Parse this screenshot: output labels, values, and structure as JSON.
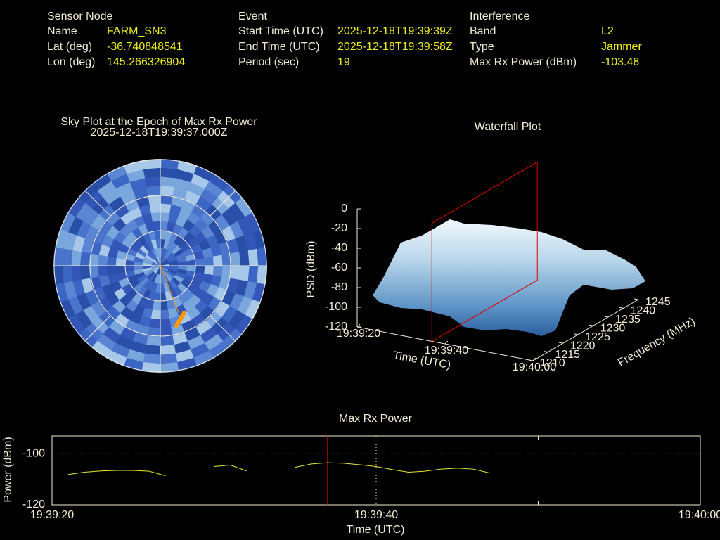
{
  "info": {
    "sensor_node": {
      "title": "Sensor Node",
      "rows": [
        {
          "label": "Name",
          "value": "FARM_SN3"
        },
        {
          "label": "Lat (deg)",
          "value": -36.740848541
        },
        {
          "label": "Lon (deg)",
          "value": 145.266326904
        }
      ]
    },
    "event": {
      "title": "Event",
      "rows": [
        {
          "label": "Start Time (UTC)",
          "value": "2025-12-18T19:39:39Z"
        },
        {
          "label": "End Time (UTC)",
          "value": "2025-12-18T19:39:58Z"
        },
        {
          "label": "Period (sec)",
          "value": 19
        }
      ]
    },
    "interference": {
      "title": "Interference",
      "rows": [
        {
          "label": "Band",
          "value": "L2"
        },
        {
          "label": "Type",
          "value": "Jammer"
        },
        {
          "label": "Max Rx Power (dBm)",
          "value": -103.48
        }
      ]
    }
  },
  "chart_data": [
    {
      "type": "polar-heatmap",
      "title": "Sky Plot at the Epoch of Max Rx Power",
      "subtitle": "2025-12-18T19:39:37.000Z",
      "track_color": "#ff9900"
    },
    {
      "type": "waterfall",
      "title": "Waterfall Plot",
      "xlabel": "Time (UTC)",
      "ylabel": "Frequency (MHz)",
      "zlabel": "PSD (dBm)",
      "xlim": [
        "19:39:20",
        "19:40:00"
      ],
      "xticks": [
        "19:39:20",
        "19:39:40",
        "19:40:00"
      ],
      "ylim": [
        1210,
        1245
      ],
      "yticks": [
        1210,
        1215,
        1220,
        1225,
        1230,
        1235,
        1240,
        1245
      ],
      "zlim": [
        -120,
        0
      ],
      "zticks": [
        0,
        -20,
        -40,
        -60,
        -80,
        -100,
        -120
      ],
      "marker_x": "19:39:37",
      "marker_color": "#dd0000"
    },
    {
      "type": "line",
      "title": "Max Rx Power",
      "xlabel": "Time (UTC)",
      "ylabel": "Power (dBm)",
      "xlim": [
        "19:39:20",
        "19:40:00"
      ],
      "xticks": [
        "19:39:20",
        "19:39:40",
        "19:40:00"
      ],
      "xminor": [
        "19:39:30",
        "19:39:50"
      ],
      "ylim": [
        -120,
        -93
      ],
      "yticks": [
        -100,
        -120
      ],
      "grid": true,
      "color": "#e8e830",
      "marker_x": "19:39:37",
      "marker_color": "#dd0000",
      "x": [
        "19:39:21",
        "19:39:22",
        "19:39:23",
        "19:39:24",
        "19:39:25",
        "19:39:26",
        "19:39:27",
        "19:39:28",
        "19:39:29",
        "19:39:30",
        "19:39:31",
        "19:39:32",
        "19:39:33",
        "19:39:34",
        "19:39:35",
        "19:39:36",
        "19:39:37",
        "19:39:38",
        "19:39:39",
        "19:39:40",
        "19:39:41",
        "19:39:42",
        "19:39:43",
        "19:39:44",
        "19:39:45",
        "19:39:46",
        "19:39:47"
      ],
      "values": [
        -108.1,
        -107.2,
        -106.7,
        -106.5,
        -106.5,
        -106.8,
        -108.6,
        null,
        null,
        -105.0,
        -104.4,
        -106.7,
        null,
        null,
        -105.3,
        -104.0,
        -103.5,
        -103.7,
        -104.3,
        -105.0,
        -106.2,
        -107.2,
        -106.8,
        -106.0,
        -105.6,
        -106.0,
        -107.5
      ]
    }
  ]
}
